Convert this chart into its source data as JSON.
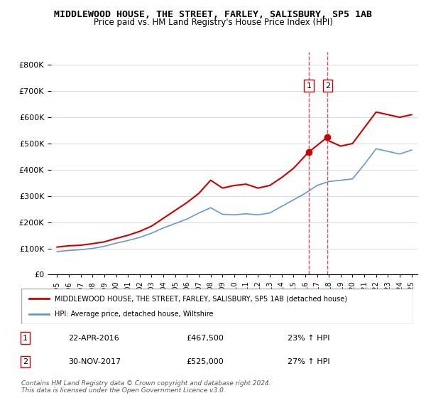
{
  "title": "MIDDLEWOOD HOUSE, THE STREET, FARLEY, SALISBURY, SP5 1AB",
  "subtitle": "Price paid vs. HM Land Registry's House Price Index (HPI)",
  "legend_label_red": "MIDDLEWOOD HOUSE, THE STREET, FARLEY, SALISBURY, SP5 1AB (detached house)",
  "legend_label_blue": "HPI: Average price, detached house, Wiltshire",
  "footer": "Contains HM Land Registry data © Crown copyright and database right 2024.\nThis data is licensed under the Open Government Licence v3.0.",
  "sale1_label": "1",
  "sale1_date": "22-APR-2016",
  "sale1_price": "£467,500",
  "sale1_hpi": "23% ↑ HPI",
  "sale1_year": 2016.3,
  "sale2_label": "2",
  "sale2_date": "30-NOV-2017",
  "sale2_price": "£525,000",
  "sale2_hpi": "27% ↑ HPI",
  "sale2_year": 2017.9,
  "ylim": [
    0,
    850000
  ],
  "xlim_start": 1995,
  "xlim_end": 2025.5,
  "red_color": "#cc0000",
  "blue_color": "#6699cc",
  "dashed_color": "#cc0000",
  "years_red": [
    1995,
    1996,
    1997,
    1998,
    1999,
    2000,
    2001,
    2002,
    2003,
    2004,
    2005,
    2006,
    2007,
    2008,
    2009,
    2010,
    2011,
    2012,
    2013,
    2014,
    2015,
    2016.3,
    2017.9,
    2018,
    2019,
    2020,
    2021,
    2022,
    2023,
    2024,
    2025
  ],
  "values_red": [
    105000,
    110000,
    112000,
    118000,
    125000,
    138000,
    150000,
    165000,
    185000,
    215000,
    245000,
    275000,
    310000,
    360000,
    330000,
    340000,
    345000,
    330000,
    340000,
    370000,
    405000,
    467500,
    525000,
    510000,
    490000,
    500000,
    560000,
    620000,
    610000,
    600000,
    610000
  ],
  "years_blue": [
    1995,
    1996,
    1997,
    1998,
    1999,
    2000,
    2001,
    2002,
    2003,
    2004,
    2005,
    2006,
    2007,
    2008,
    2009,
    2010,
    2011,
    2012,
    2013,
    2014,
    2015,
    2016,
    2017,
    2018,
    2019,
    2020,
    2021,
    2022,
    2023,
    2024,
    2025
  ],
  "values_blue": [
    88000,
    92000,
    95000,
    100000,
    108000,
    120000,
    130000,
    142000,
    158000,
    178000,
    195000,
    212000,
    235000,
    255000,
    230000,
    228000,
    232000,
    228000,
    235000,
    260000,
    285000,
    310000,
    340000,
    355000,
    360000,
    365000,
    420000,
    480000,
    470000,
    460000,
    475000
  ]
}
